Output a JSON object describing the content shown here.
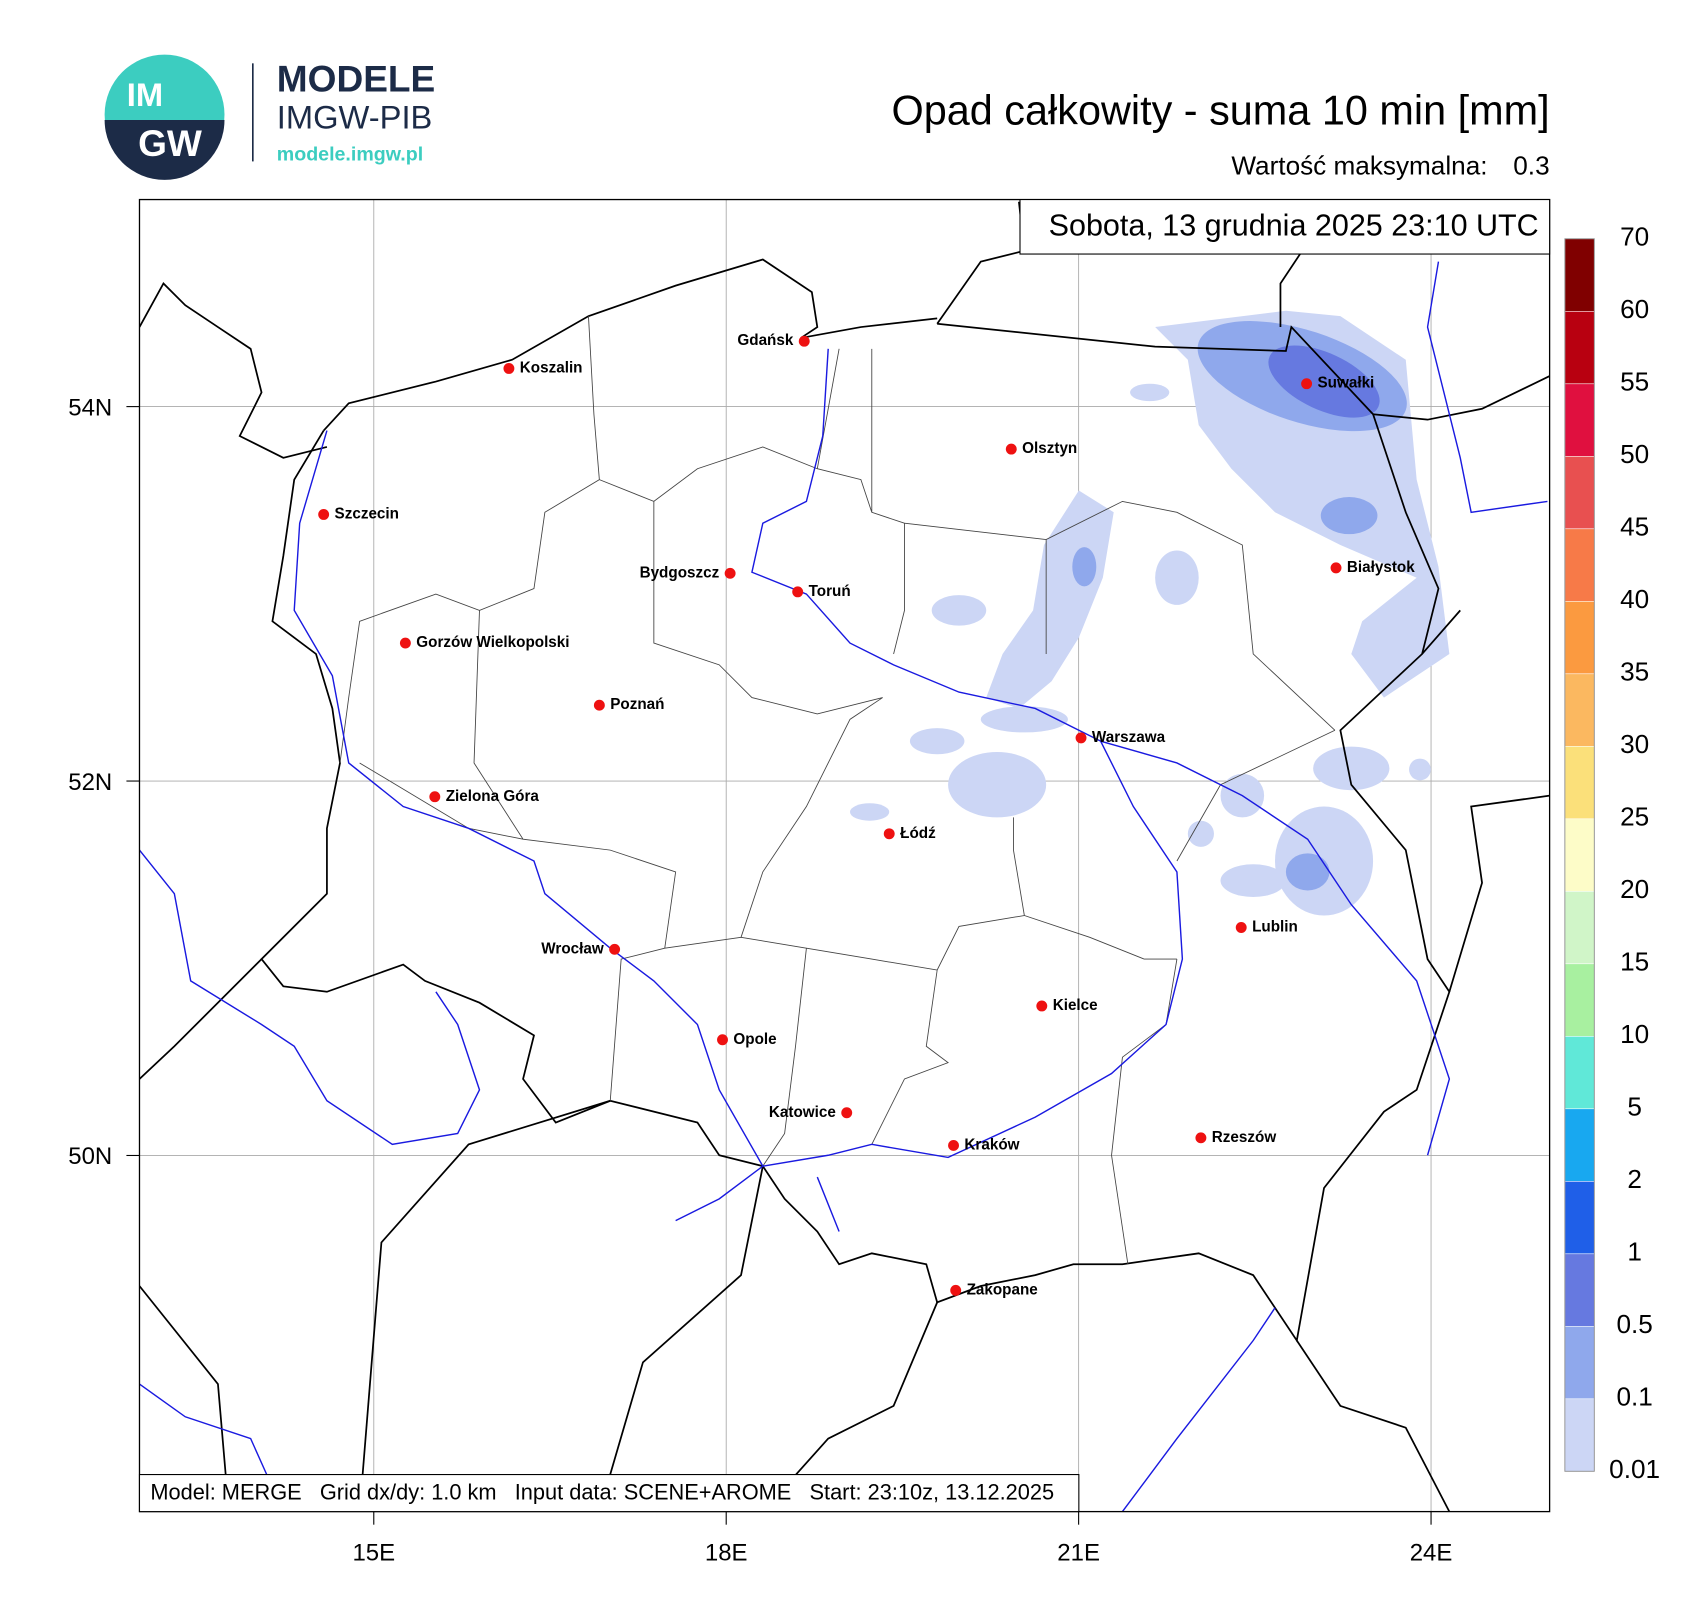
{
  "logo": {
    "badge_top": "IM",
    "badge_bottom": "GW",
    "title": "MODELE",
    "subtitle": "IMGW-PIB",
    "url": "modele.imgw.pl"
  },
  "header": {
    "title": "Opad całkowity - suma 10 min [mm]",
    "max_label": "Wartość maksymalna:",
    "max_value": 0.3
  },
  "map": {
    "timestamp": "Sobota, 13 grudnia 2025 23:10 UTC",
    "footer": "Model: MERGE   Grid dx/dy: 1.0 km   Input data: SCENE+AROME   Start: 23:10z, 13.12.2025",
    "grid": true,
    "xticks": [
      {
        "value": 15,
        "label": "15E"
      },
      {
        "value": 18,
        "label": "18E"
      },
      {
        "value": 21,
        "label": "21E"
      },
      {
        "value": 24,
        "label": "24E"
      }
    ],
    "yticks": [
      {
        "value": 54,
        "label": "54N"
      },
      {
        "value": 52,
        "label": "52N"
      },
      {
        "value": 50,
        "label": "50N"
      }
    ],
    "city_color": "#ee1111",
    "cities": [
      "Gdańsk",
      "Koszalin",
      "Suwałki",
      "Szczecin",
      "Olsztyn",
      "Białystok",
      "Bydgoszcz",
      "Toruń",
      "Gorzów Wielkopolski",
      "Poznań",
      "Warszawa",
      "Zielona Góra",
      "Łódź",
      "Lublin",
      "Wrocław",
      "Kielce",
      "Opole",
      "Katowice",
      "Kraków",
      "Rzeszów",
      "Zakopane"
    ]
  },
  "legend": {
    "levels": [
      0.01,
      0.1,
      0.5,
      1,
      2,
      5,
      10,
      15,
      20,
      25,
      30,
      35,
      40,
      45,
      50,
      55,
      60,
      70
    ],
    "colors": [
      "#ccd6f5",
      "#8fa8ec",
      "#6679e0",
      "#1f5fe8",
      "#18a8f0",
      "#60e8d8",
      "#a8f0a0",
      "#d0f5c8",
      "#fdfcc8",
      "#fbe07a",
      "#fbb860",
      "#fb9a40",
      "#f77a48",
      "#e85050",
      "#e0103f",
      "#b80010",
      "#800000"
    ]
  }
}
